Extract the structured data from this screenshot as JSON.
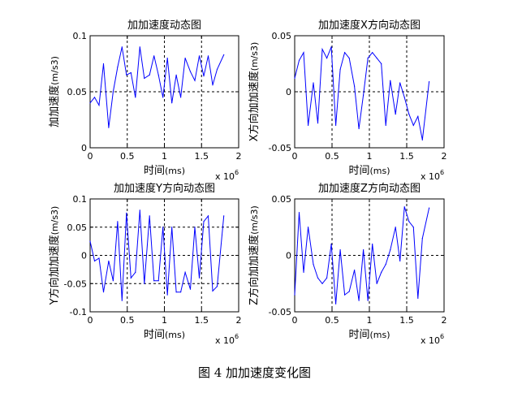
{
  "caption": "图 4  加加速度变化图",
  "colors": {
    "line": "#0000ff",
    "axes": "#000000",
    "background": "#ffffff"
  },
  "chart_data": [
    {
      "type": "line",
      "title": "加加速度动态图",
      "xlabel": "时间",
      "xlabel_unit": "(ms)",
      "ylabel": "加加速度",
      "ylabel_unit": "(m/s3)",
      "x_multiplier_base": "x 10",
      "x_multiplier_exp": "6",
      "xlim": [
        0,
        2
      ],
      "ylim": [
        0,
        0.1
      ],
      "xticks": [
        "0",
        "0.5",
        "1",
        "1.5",
        "2"
      ],
      "yticks": [
        "0",
        "0.05",
        "0.1"
      ],
      "grid": true,
      "x": [
        0,
        0.06,
        0.12,
        0.18,
        0.25,
        0.31,
        0.37,
        0.43,
        0.49,
        0.55,
        0.61,
        0.67,
        0.73,
        0.8,
        0.86,
        0.92,
        0.98,
        1.04,
        1.1,
        1.16,
        1.22,
        1.28,
        1.35,
        1.41,
        1.47,
        1.53,
        1.59,
        1.65,
        1.71,
        1.8
      ],
      "values": [
        0.04,
        0.045,
        0.038,
        0.075,
        0.018,
        0.05,
        0.072,
        0.09,
        0.065,
        0.067,
        0.045,
        0.09,
        0.062,
        0.065,
        0.082,
        0.065,
        0.045,
        0.08,
        0.04,
        0.065,
        0.045,
        0.08,
        0.068,
        0.06,
        0.082,
        0.064,
        0.082,
        0.056,
        0.07,
        0.083
      ]
    },
    {
      "type": "line",
      "title": "加加速度X方向动态图",
      "xlabel": "时间",
      "xlabel_unit": "(ms)",
      "ylabel": "X方向加加速度",
      "ylabel_unit": "(m/s3)",
      "x_multiplier_base": "x 10",
      "x_multiplier_exp": "6",
      "xlim": [
        0,
        2
      ],
      "ylim": [
        -0.05,
        0.05
      ],
      "xticks": [
        "0",
        "0.5",
        "1",
        "1.5",
        "2"
      ],
      "yticks": [
        "-0.05",
        "0",
        "0.05"
      ],
      "grid": true,
      "x": [
        0,
        0.06,
        0.12,
        0.18,
        0.25,
        0.31,
        0.37,
        0.43,
        0.49,
        0.55,
        0.61,
        0.67,
        0.73,
        0.8,
        0.86,
        0.92,
        0.98,
        1.04,
        1.1,
        1.16,
        1.22,
        1.28,
        1.35,
        1.41,
        1.47,
        1.53,
        1.59,
        1.65,
        1.71,
        1.8
      ],
      "values": [
        0.012,
        0.028,
        0.035,
        -0.03,
        0.008,
        -0.028,
        0.038,
        0.03,
        0.04,
        -0.03,
        0.02,
        0.035,
        0.03,
        0.005,
        -0.033,
        -0.003,
        0.03,
        0.035,
        0.03,
        0.025,
        -0.03,
        0.01,
        -0.02,
        0.008,
        -0.005,
        -0.02,
        -0.03,
        -0.022,
        -0.043,
        0.009
      ]
    },
    {
      "type": "line",
      "title": "加加速度Y方向动态图",
      "xlabel": "时间",
      "xlabel_unit": "(ms)",
      "ylabel": "Y方向加加速度",
      "ylabel_unit": "(m/s3)",
      "x_multiplier_base": "x 10",
      "x_multiplier_exp": "6",
      "xlim": [
        0,
        2
      ],
      "ylim": [
        -0.1,
        0.1
      ],
      "xticks": [
        "0",
        "0.5",
        "1",
        "1.5",
        "2"
      ],
      "yticks": [
        "-0.1",
        "-0.05",
        "0",
        "0.05",
        "0.1"
      ],
      "grid": true,
      "x": [
        0,
        0.06,
        0.12,
        0.18,
        0.25,
        0.31,
        0.37,
        0.43,
        0.49,
        0.55,
        0.61,
        0.67,
        0.73,
        0.8,
        0.86,
        0.92,
        0.98,
        1.04,
        1.1,
        1.16,
        1.22,
        1.28,
        1.35,
        1.41,
        1.47,
        1.53,
        1.59,
        1.65,
        1.71,
        1.8
      ],
      "values": [
        0.025,
        -0.01,
        -0.005,
        -0.065,
        -0.01,
        -0.045,
        0.06,
        -0.08,
        0.075,
        -0.04,
        -0.03,
        0.08,
        -0.05,
        0.07,
        -0.045,
        -0.045,
        0.05,
        -0.07,
        0.05,
        -0.065,
        -0.065,
        -0.03,
        -0.06,
        0.05,
        -0.04,
        0.06,
        0.07,
        -0.063,
        -0.055,
        0.07
      ]
    },
    {
      "type": "line",
      "title": "加加速度Z方向动态图",
      "xlabel": "时间",
      "xlabel_unit": "(ms)",
      "ylabel": "Z方向加加速度",
      "ylabel_unit": "(m/s3)",
      "x_multiplier_base": "x 10",
      "x_multiplier_exp": "6",
      "xlim": [
        0,
        2
      ],
      "ylim": [
        -0.05,
        0.05
      ],
      "xticks": [
        "0",
        "0.5",
        "1",
        "1.5",
        "2"
      ],
      "yticks": [
        "-0.05",
        "0",
        "0.05"
      ],
      "grid": true,
      "x": [
        0,
        0.06,
        0.12,
        0.18,
        0.25,
        0.31,
        0.37,
        0.43,
        0.49,
        0.55,
        0.61,
        0.67,
        0.73,
        0.8,
        0.86,
        0.92,
        0.98,
        1.04,
        1.1,
        1.16,
        1.22,
        1.28,
        1.35,
        1.41,
        1.47,
        1.53,
        1.59,
        1.65,
        1.71,
        1.8
      ],
      "values": [
        -0.035,
        0.038,
        -0.015,
        0.025,
        -0.008,
        -0.02,
        -0.025,
        -0.02,
        0.01,
        -0.043,
        0.005,
        -0.035,
        -0.032,
        -0.013,
        -0.04,
        0.005,
        -0.04,
        0.01,
        -0.025,
        -0.015,
        -0.008,
        0.005,
        0.025,
        -0.005,
        0.043,
        0.03,
        0.025,
        -0.038,
        0.015,
        0.042
      ]
    }
  ]
}
